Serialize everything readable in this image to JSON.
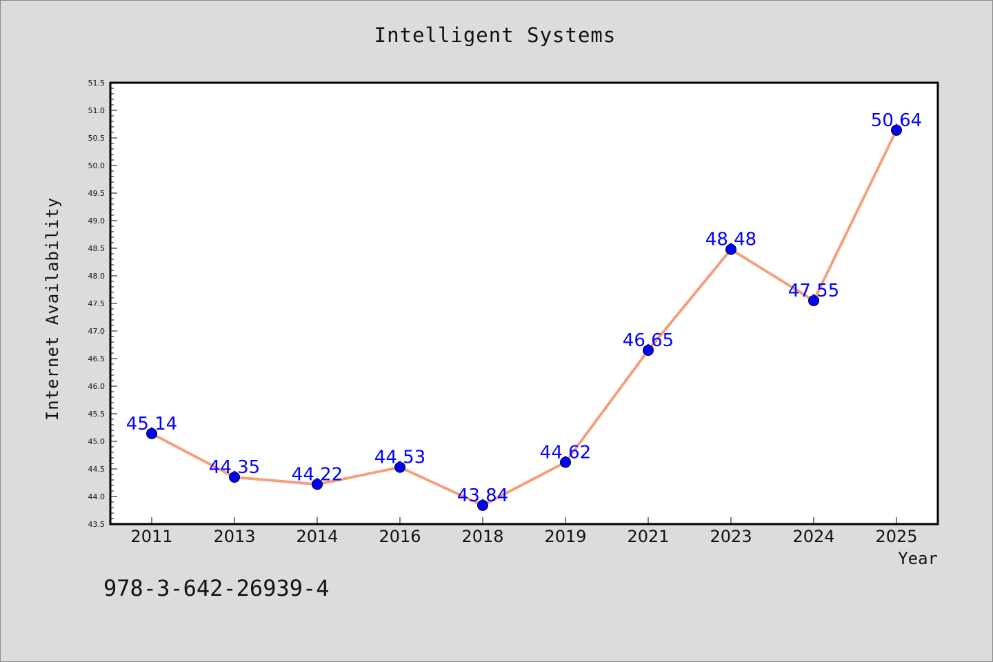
{
  "chart_data": {
    "type": "line",
    "title": "Intelligent Systems",
    "xlabel": "Year",
    "ylabel": "Internet Availability",
    "categories": [
      "2011",
      "2013",
      "2014",
      "2016",
      "2018",
      "2019",
      "2021",
      "2023",
      "2024",
      "2025"
    ],
    "series": [
      {
        "values": [
          45.14,
          44.35,
          44.22,
          44.53,
          43.84,
          44.62,
          46.65,
          48.48,
          47.55,
          50.64
        ],
        "line_color": "#f4a07e",
        "marker_color": "#0000ff",
        "label_color": "#0000ff"
      }
    ],
    "y_ticks": [
      "43.5",
      "44.0",
      "44.5",
      "45.0",
      "45.5",
      "46.0",
      "46.5",
      "47.0",
      "47.5",
      "48.0",
      "48.5",
      "49.0",
      "49.5",
      "50.0",
      "50.5",
      "51.0",
      "51.5"
    ],
    "ylim": [
      43.5,
      51.5
    ],
    "y_tick_step": 0.5,
    "y_minor_step": 0.1,
    "grid": false,
    "data_labels": [
      "45.14",
      "44.35",
      "44.22",
      "44.53",
      "43.84",
      "44.62",
      "46.65",
      "48.48",
      "47.55",
      "50.64"
    ]
  },
  "footer": {
    "isbn": "978-3-642-26939-4"
  },
  "colors": {
    "background": "#dcdcdc",
    "plot_area": "#ffffff",
    "line": "#f4a07e",
    "marker": "#0000ff",
    "data_label": "#0000ff"
  }
}
